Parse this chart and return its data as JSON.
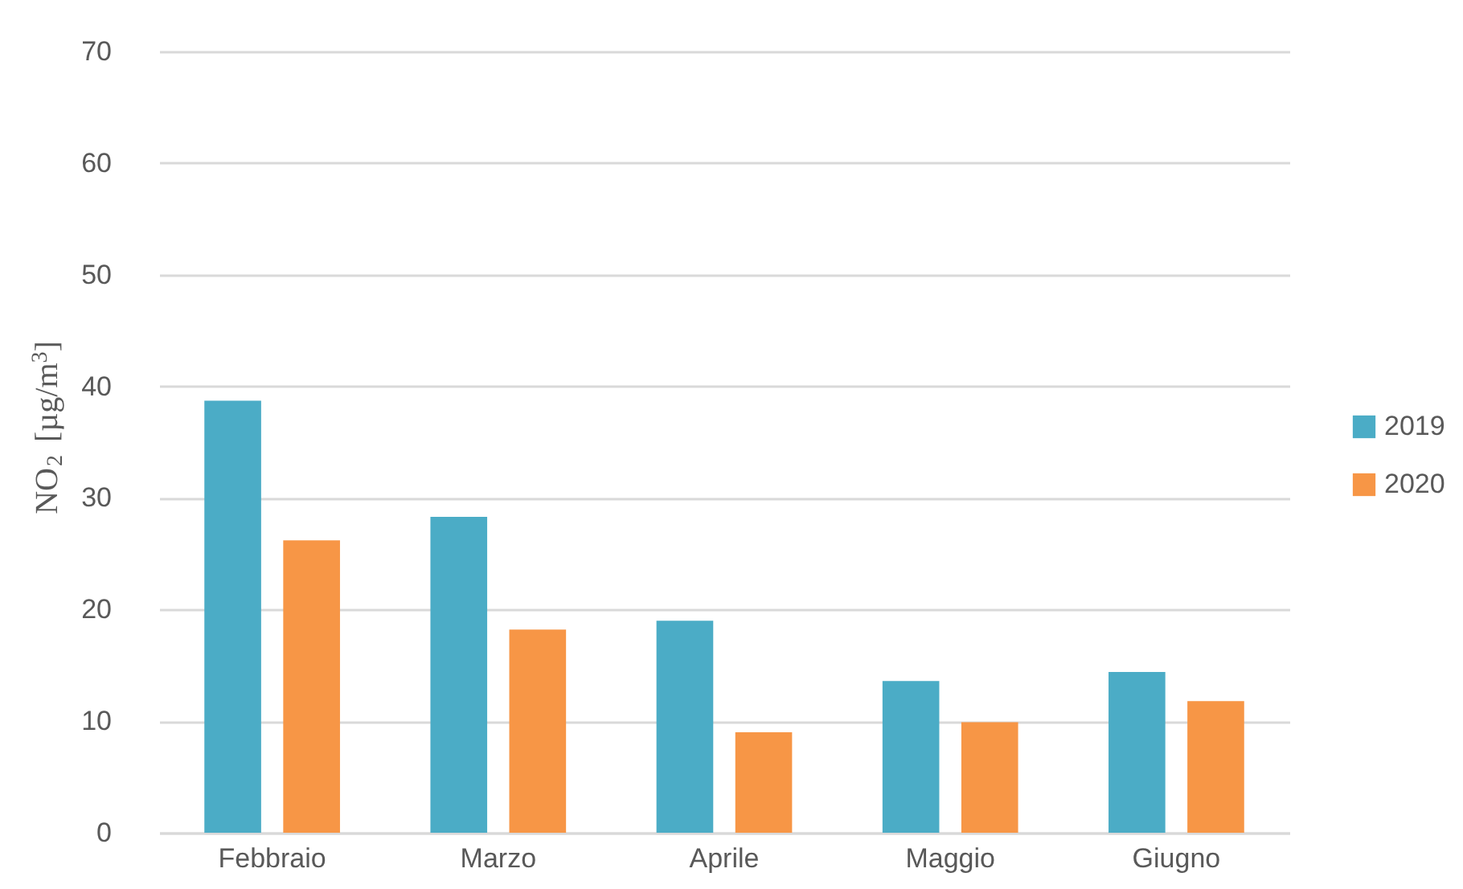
{
  "chart_data": {
    "type": "bar",
    "ylabel": "NO$_{2}$ [µg/m$^{3}$]",
    "categories": [
      "Febbraio",
      "Marzo",
      "Aprile",
      "Maggio",
      "Giugno"
    ],
    "series": [
      {
        "name": "2019",
        "color": "#4bacc6",
        "values": [
          38.7,
          28.3,
          19.0,
          13.6,
          14.4
        ]
      },
      {
        "name": "2020",
        "color": "#f79646",
        "values": [
          26.2,
          18.2,
          9.0,
          9.9,
          11.8
        ]
      }
    ],
    "ylim": [
      0,
      70
    ],
    "yticks": [
      0,
      10,
      20,
      30,
      40,
      50,
      60,
      70
    ],
    "grid": "y",
    "legend": "right"
  }
}
